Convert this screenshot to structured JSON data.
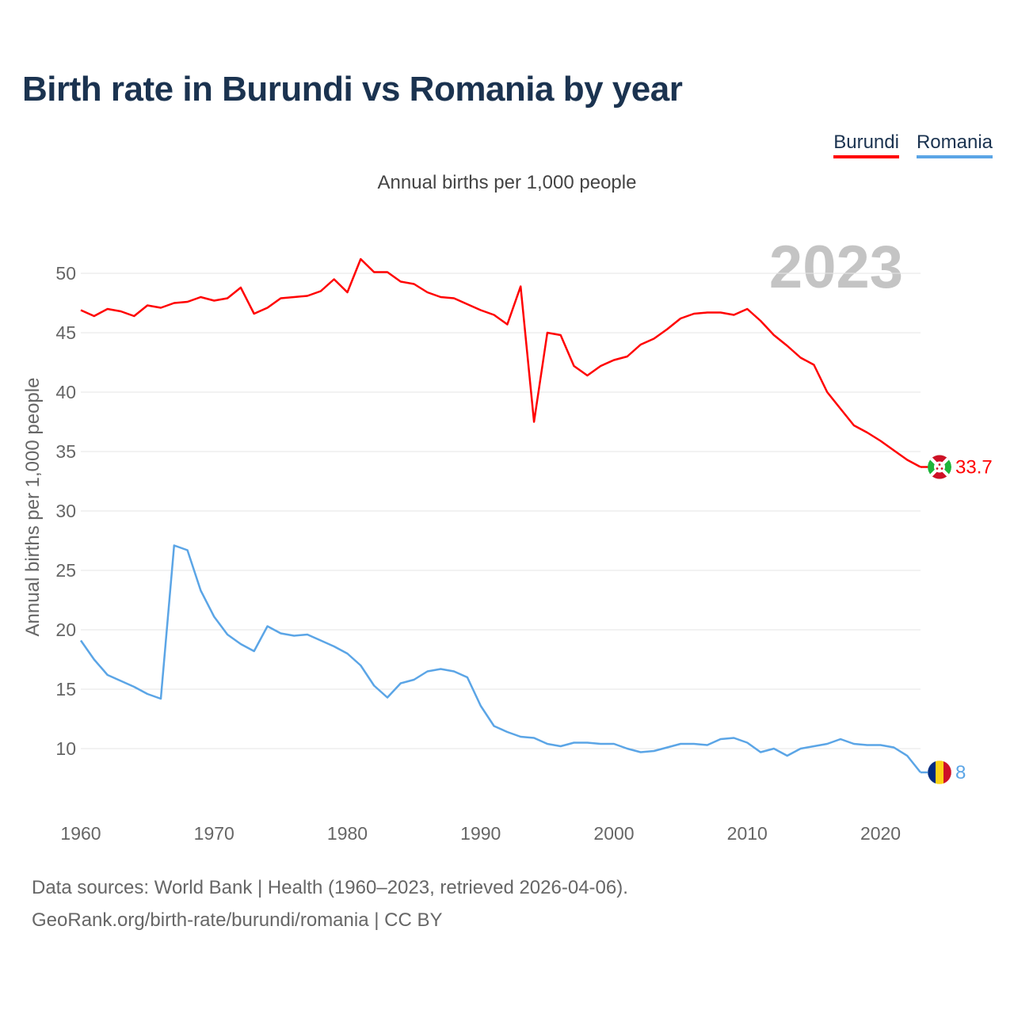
{
  "title": "Birth rate in Burundi vs Romania by year",
  "subtitle": "Annual births per 1,000 people",
  "year_badge": "2023",
  "legend": [
    {
      "label": "Burundi",
      "color": "#ff0000"
    },
    {
      "label": "Romania",
      "color": "#5ba5e6"
    }
  ],
  "footer": {
    "sources": "Data sources: World Bank | Health (1960–2023, retrieved 2026-04-06).",
    "credit": "GeoRank.org/birth-rate/burundi/romania | CC BY"
  },
  "chart_data": {
    "type": "line",
    "title": "Birth rate in Burundi vs Romania by year",
    "xlabel": "",
    "ylabel": "Annual births per 1,000 people",
    "xlim": [
      1960,
      2023
    ],
    "ylim": [
      5,
      53
    ],
    "xticks": [
      1960,
      1970,
      1980,
      1990,
      2000,
      2010,
      2020
    ],
    "yticks": [
      10,
      15,
      20,
      25,
      30,
      35,
      40,
      45,
      50
    ],
    "grid": true,
    "legend_position": "top-right",
    "x": [
      1960,
      1961,
      1962,
      1963,
      1964,
      1965,
      1966,
      1967,
      1968,
      1969,
      1970,
      1971,
      1972,
      1973,
      1974,
      1975,
      1976,
      1977,
      1978,
      1979,
      1980,
      1981,
      1982,
      1983,
      1984,
      1985,
      1986,
      1987,
      1988,
      1989,
      1990,
      1991,
      1992,
      1993,
      1994,
      1995,
      1996,
      1997,
      1998,
      1999,
      2000,
      2001,
      2002,
      2003,
      2004,
      2005,
      2006,
      2007,
      2008,
      2009,
      2010,
      2011,
      2012,
      2013,
      2014,
      2015,
      2016,
      2017,
      2018,
      2019,
      2020,
      2021,
      2022,
      2023
    ],
    "series": [
      {
        "name": "Burundi",
        "color": "#ff0000",
        "end_label": "33.7",
        "values": [
          46.9,
          46.4,
          47.0,
          46.8,
          46.4,
          47.3,
          47.1,
          47.5,
          47.6,
          48.0,
          47.7,
          47.9,
          48.8,
          46.6,
          47.1,
          47.9,
          48.0,
          48.1,
          48.5,
          49.5,
          48.4,
          51.2,
          50.1,
          50.1,
          49.3,
          49.1,
          48.4,
          48.0,
          47.9,
          47.4,
          46.9,
          46.5,
          45.7,
          48.9,
          37.5,
          45.0,
          44.8,
          42.2,
          41.4,
          42.2,
          42.7,
          43.0,
          44.0,
          44.5,
          45.3,
          46.2,
          46.6,
          46.7,
          46.7,
          46.5,
          47.0,
          46.0,
          44.8,
          43.9,
          42.9,
          42.3,
          40.0,
          38.6,
          37.2,
          36.6,
          35.9,
          35.1,
          34.3,
          33.7
        ]
      },
      {
        "name": "Romania",
        "color": "#5ba5e6",
        "end_label": "8",
        "values": [
          19.1,
          17.5,
          16.2,
          15.7,
          15.2,
          14.6,
          14.2,
          27.1,
          26.7,
          23.3,
          21.1,
          19.6,
          18.8,
          18.2,
          20.3,
          19.7,
          19.5,
          19.6,
          19.1,
          18.6,
          18.0,
          17.0,
          15.3,
          14.3,
          15.5,
          15.8,
          16.5,
          16.7,
          16.5,
          16.0,
          13.6,
          11.9,
          11.4,
          11.0,
          10.9,
          10.4,
          10.2,
          10.5,
          10.5,
          10.4,
          10.4,
          10.0,
          9.7,
          9.8,
          10.1,
          10.4,
          10.4,
          10.3,
          10.8,
          10.9,
          10.5,
          9.7,
          10.0,
          9.4,
          10.0,
          10.2,
          10.4,
          10.8,
          10.4,
          10.3,
          10.3,
          10.1,
          9.4,
          8.0
        ]
      }
    ]
  }
}
